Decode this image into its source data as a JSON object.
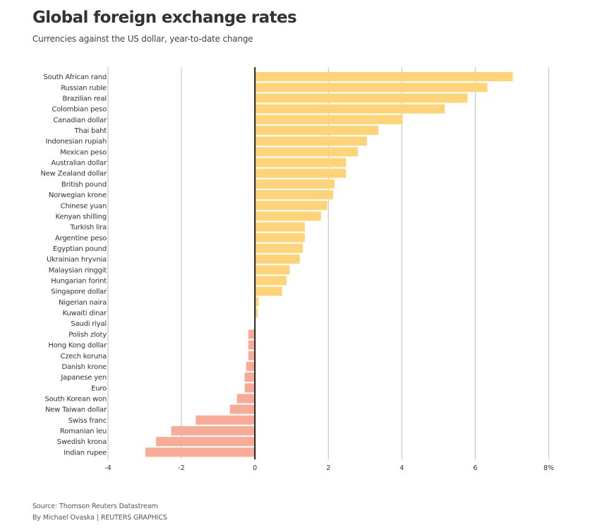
{
  "header": {
    "title": "Global foreign exchange rates",
    "subtitle": "Currencies against the US dollar, year-to-date change"
  },
  "footer": {
    "source": "Source: Thomson Reuters Datastream",
    "byline": "By Michael Ovaska | REUTERS GRAPHICS"
  },
  "colors": {
    "positive": "#ffd478",
    "negative": "#f9ab98",
    "zero_line": "#222222",
    "grid": "#c8c8c8"
  },
  "chart_data": {
    "type": "bar",
    "orientation": "horizontal",
    "title": "Global foreign exchange rates",
    "subtitle": "Currencies against the US dollar, year-to-date change",
    "xlabel": "",
    "ylabel": "",
    "unit": "%",
    "xlim": [
      -4,
      8
    ],
    "x_ticks": [
      -4,
      -2,
      0,
      2,
      4,
      6,
      8
    ],
    "x_tick_labels": [
      "-4",
      "-2",
      "0",
      "2",
      "4",
      "6",
      "8%"
    ],
    "grid": true,
    "legend": "none",
    "categories": [
      "South African rand",
      "Russian ruble",
      "Brazilian real",
      "Colombian peso",
      "Canadian dollar",
      "Thai baht",
      "Indonesian rupiah",
      "Mexican peso",
      "Australian dollar",
      "New Zealand dollar",
      "British pound",
      "Norwegian krone",
      "Chinese yuan",
      "Kenyan shilling",
      "Turkish lira",
      "Argentine peso",
      "Egyptian pound",
      "Ukrainian hryvnia",
      "Malaysian ringgit",
      "Hungarian forint",
      "Singapore dollar",
      "Nigerian naira",
      "Kuwaiti dinar",
      "Saudi riyal",
      "Polish zloty",
      "Hong Kong dollar",
      "Czech koruna",
      "Danish krone",
      "Japanese yen",
      "Euro",
      "South Korean won",
      "New Taiwan dollar",
      "Swiss franc",
      "Romanian leu",
      "Swedish krona",
      "Indian rupee"
    ],
    "values": [
      7.02,
      6.33,
      5.79,
      5.17,
      4.02,
      3.36,
      3.05,
      2.8,
      2.48,
      2.48,
      2.17,
      2.13,
      1.97,
      1.8,
      1.36,
      1.36,
      1.3,
      1.22,
      0.95,
      0.86,
      0.74,
      0.1,
      0.08,
      0.0,
      -0.18,
      -0.18,
      -0.18,
      -0.24,
      -0.28,
      -0.28,
      -0.49,
      -0.68,
      -1.61,
      -2.28,
      -2.69,
      -2.98
    ]
  }
}
